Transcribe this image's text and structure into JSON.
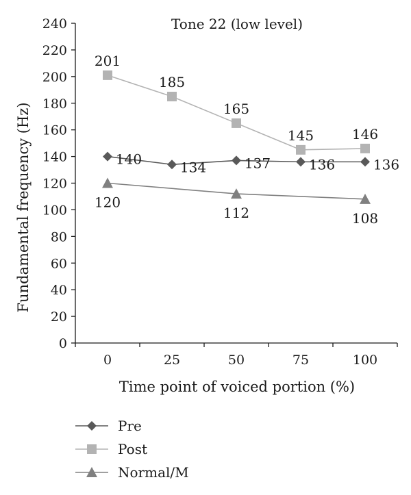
{
  "chart_data": {
    "type": "line",
    "title": "Tone 22 (low level)",
    "xlabel": "Time point of voiced portion (%)",
    "ylabel": "Fundamental frequency (Hz)",
    "x": [
      0,
      25,
      50,
      75,
      100
    ],
    "ylim": [
      0,
      240
    ],
    "yticks": [
      0,
      20,
      40,
      60,
      80,
      100,
      120,
      140,
      160,
      180,
      200,
      220,
      240
    ],
    "grid": false,
    "legend_position": "bottom-left",
    "series": [
      {
        "name": "Pre",
        "marker": "diamond",
        "color": "#595959",
        "x": [
          0,
          25,
          50,
          75,
          100
        ],
        "values": [
          140,
          134,
          137,
          136,
          136
        ],
        "labels": [
          "140",
          "134",
          "137",
          "136",
          "136"
        ]
      },
      {
        "name": "Post",
        "marker": "square",
        "color": "#b3b3b3",
        "x": [
          0,
          25,
          50,
          75,
          100
        ],
        "values": [
          201,
          185,
          165,
          145,
          146
        ],
        "labels": [
          "201",
          "185",
          "165",
          "145",
          "146"
        ]
      },
      {
        "name": "Normal/M",
        "marker": "triangle",
        "color": "#808080",
        "x": [
          0,
          50,
          100
        ],
        "values": [
          120,
          112,
          108
        ],
        "labels": [
          "120",
          "112",
          "108"
        ]
      }
    ]
  }
}
